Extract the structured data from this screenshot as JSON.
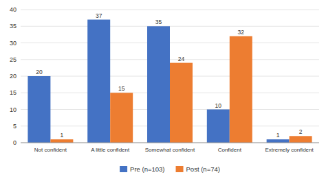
{
  "chart_data": {
    "type": "bar",
    "categories": [
      "Not confident",
      "A little confident",
      "Somewhat confident",
      "Confident",
      "Extremely confident"
    ],
    "series": [
      {
        "name": "Pre (n=103)",
        "color": "#4472C4",
        "values": [
          20,
          37,
          35,
          10,
          1
        ]
      },
      {
        "name": "Post (n=74)",
        "color": "#ED7D31",
        "values": [
          1,
          15,
          24,
          32,
          2
        ]
      }
    ],
    "ylim": [
      0,
      40
    ],
    "yticks": [
      0,
      5,
      10,
      15,
      20,
      25,
      30,
      35,
      40
    ],
    "grid": true,
    "legend": "bottom",
    "data_labels": true
  }
}
